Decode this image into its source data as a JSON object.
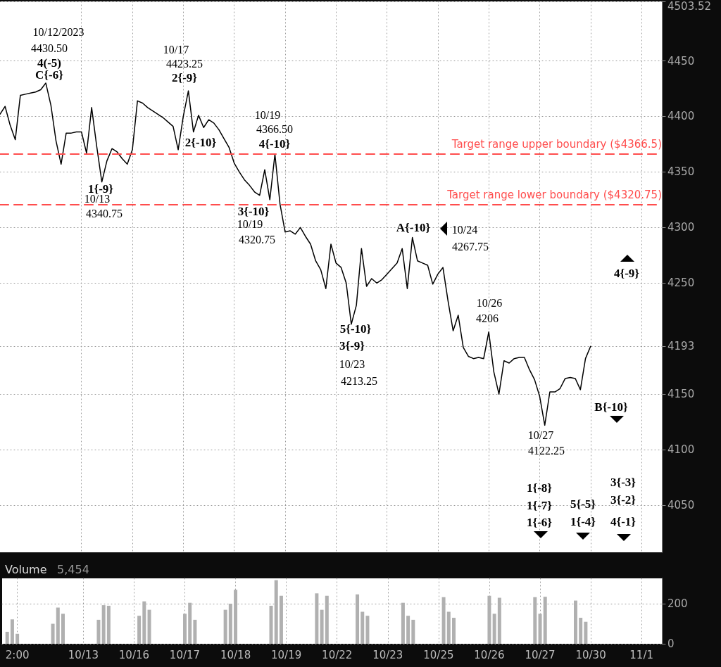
{
  "chart_data": [
    {
      "type": "line",
      "tick_labels": "y",
      "grid": true,
      "line_style": "solid",
      "categories": [
        null,
        null,
        null,
        null,
        null,
        null,
        null,
        null,
        null,
        null,
        null,
        null,
        null,
        null,
        null,
        null,
        null,
        null,
        null,
        null,
        null,
        null,
        null,
        null,
        null,
        null,
        null,
        null,
        null,
        null,
        null,
        null,
        null,
        null,
        null,
        null,
        null,
        null,
        null,
        null,
        null,
        null,
        null,
        null,
        null,
        null,
        null,
        null,
        null,
        null,
        null,
        null,
        null,
        null,
        null,
        null,
        null,
        null,
        null,
        null,
        null,
        null,
        null,
        null,
        null,
        null,
        null,
        null,
        null,
        null,
        null,
        null,
        null,
        null,
        null,
        null,
        null,
        null,
        null,
        null,
        null,
        null,
        null,
        null,
        null,
        null,
        null,
        null,
        null,
        null,
        null,
        null,
        null,
        null,
        null,
        null,
        null,
        null,
        null,
        null,
        null,
        null,
        null,
        null,
        null,
        null,
        null,
        null,
        null,
        null,
        null,
        null,
        null,
        null,
        null,
        null,
        null,
        null,
        null,
        null,
        null,
        null,
        null,
        null,
        null,
        null,
        null,
        null,
        null,
        null,
        null
      ],
      "ylim": [
        4007.6,
        4503.52
      ],
      "yticks": [
        4050,
        4100,
        4150,
        {
          "value": 4193,
          "label": "4193"
        },
        4250,
        4300,
        4350,
        4400,
        4450,
        {
          "value": 4503.52,
          "label": "4503.52"
        }
      ],
      "series": [
        {
          "color": "#000000",
          "values": [
            4402,
            4409,
            4392,
            4379,
            4419,
            4420,
            4421,
            4422,
            4424,
            4430,
            4410,
            4378,
            4357,
            4385,
            4385,
            4386,
            4386,
            4367,
            4408,
            4373,
            4341,
            4360,
            4371,
            4368,
            4362,
            4357,
            4370,
            4414,
            4412,
            4408,
            4405,
            4402,
            4399,
            4395,
            4391,
            4370,
            4400,
            4423,
            4386,
            4401,
            4390,
            4397,
            4394,
            4388,
            4380,
            4372,
            4358,
            4350,
            4343,
            4338,
            4332,
            4329,
            4352,
            4325,
            4366,
            4321,
            4296,
            4297,
            4294,
            4300,
            4292,
            4285,
            4270,
            4262,
            4245,
            4285,
            4268,
            4264,
            4250,
            4213,
            4230,
            4281,
            4247,
            4254,
            4250,
            4253,
            4258,
            4263,
            4268,
            4281,
            4245,
            4291,
            4270,
            4268,
            4266,
            4249,
            4258,
            4264,
            4234,
            4207,
            4221,
            4192,
            4184,
            4182,
            4183,
            4182,
            4206,
            4170,
            4150,
            4180,
            4178,
            4182,
            4183,
            4183,
            4172,
            4163,
            4148,
            4122,
            4152,
            4152,
            4155,
            4164,
            4165,
            4164,
            4154,
            4182,
            4193,
            null,
            null,
            null,
            null,
            null,
            null,
            null,
            null,
            null,
            null,
            null,
            null,
            null,
            null
          ]
        }
      ],
      "ref_lines": [
        {
          "axis": "y",
          "value": 4366.5,
          "label": "Target range upper boundary ($4366.5)",
          "color": "#ff4d4d",
          "line_style": "dashed"
        },
        {
          "axis": "y",
          "value": 4320.75,
          "label": "Target range lower boundary ($4320.75)",
          "color": "#ff4d4d",
          "line_style": "dashed"
        }
      ],
      "annotations": [
        "10/12/2023",
        "4430.50",
        "4(-5)",
        "C{-6}",
        "10/17",
        "4423.25",
        "2{-9}",
        "2{-10}",
        "1{-9}",
        "10/13",
        "4340.75",
        "10/19",
        "4366.50",
        "4{-10}",
        "3{-10}",
        "10/19",
        "4320.75",
        "A{-10}",
        "10/24",
        "4267.75",
        "10/26",
        "4206",
        "5{-10}",
        "3{-9}",
        "10/23",
        "4213.25",
        "4{-9}",
        "B{-10}",
        "10/27",
        "4122.25",
        "1{-8}",
        "1{-7}",
        "1{-6}",
        "5{-5}",
        "1{-4}",
        "3{-3}",
        "3{-2}",
        "4{-1}"
      ]
    },
    {
      "type": "bar",
      "title": "Volume",
      "subtitle": "5,454",
      "grid": true,
      "categories": [
        null,
        null,
        null,
        "2:00",
        null,
        null,
        null,
        null,
        null,
        null,
        null,
        null,
        null,
        null,
        null,
        null,
        "10/13",
        null,
        null,
        null,
        null,
        null,
        null,
        null,
        null,
        null,
        "10/16",
        null,
        null,
        null,
        null,
        null,
        null,
        null,
        null,
        null,
        "10/17",
        null,
        null,
        null,
        null,
        null,
        null,
        null,
        null,
        null,
        "10/18",
        null,
        null,
        null,
        null,
        null,
        null,
        null,
        null,
        null,
        "10/19",
        null,
        null,
        null,
        null,
        null,
        null,
        null,
        null,
        null,
        "10/22",
        null,
        null,
        null,
        null,
        null,
        null,
        null,
        null,
        null,
        "10/23",
        null,
        null,
        null,
        null,
        null,
        null,
        null,
        null,
        null,
        "10/25",
        null,
        null,
        null,
        null,
        null,
        null,
        null,
        null,
        null,
        "10/26",
        null,
        null,
        null,
        null,
        null,
        null,
        null,
        null,
        null,
        "10/27",
        null,
        null,
        null,
        null,
        null,
        null,
        null,
        null,
        null,
        "10/30",
        null,
        null,
        null,
        null,
        null,
        null,
        null,
        null,
        null,
        "11/1",
        null,
        null,
        null,
        null
      ],
      "ylim": [
        0,
        327
      ],
      "yticks": [
        0,
        200
      ],
      "series": [
        {
          "color": "#b0b0b0",
          "values": [
            null,
            60,
            122,
            50,
            null,
            null,
            null,
            null,
            null,
            null,
            100,
            181,
            150,
            null,
            null,
            null,
            null,
            null,
            null,
            120,
            193,
            190,
            null,
            null,
            null,
            null,
            null,
            140,
            212,
            170,
            null,
            null,
            null,
            null,
            null,
            null,
            150,
            205,
            120,
            null,
            null,
            null,
            null,
            null,
            170,
            200,
            270,
            null,
            null,
            null,
            null,
            null,
            null,
            190,
            318,
            240,
            null,
            null,
            null,
            null,
            null,
            null,
            252,
            170,
            240,
            null,
            null,
            null,
            null,
            null,
            247,
            160,
            140,
            null,
            null,
            null,
            null,
            null,
            null,
            205,
            140,
            120,
            null,
            null,
            null,
            null,
            null,
            233,
            160,
            130,
            null,
            null,
            null,
            null,
            null,
            null,
            240,
            150,
            230,
            null,
            null,
            null,
            null,
            null,
            null,
            233,
            150,
            235,
            null,
            null,
            null,
            null,
            null,
            216,
            130,
            110,
            null,
            null,
            null,
            null,
            null,
            null,
            null,
            null,
            null,
            null,
            null,
            null,
            null,
            null,
            null
          ]
        }
      ]
    }
  ]
}
